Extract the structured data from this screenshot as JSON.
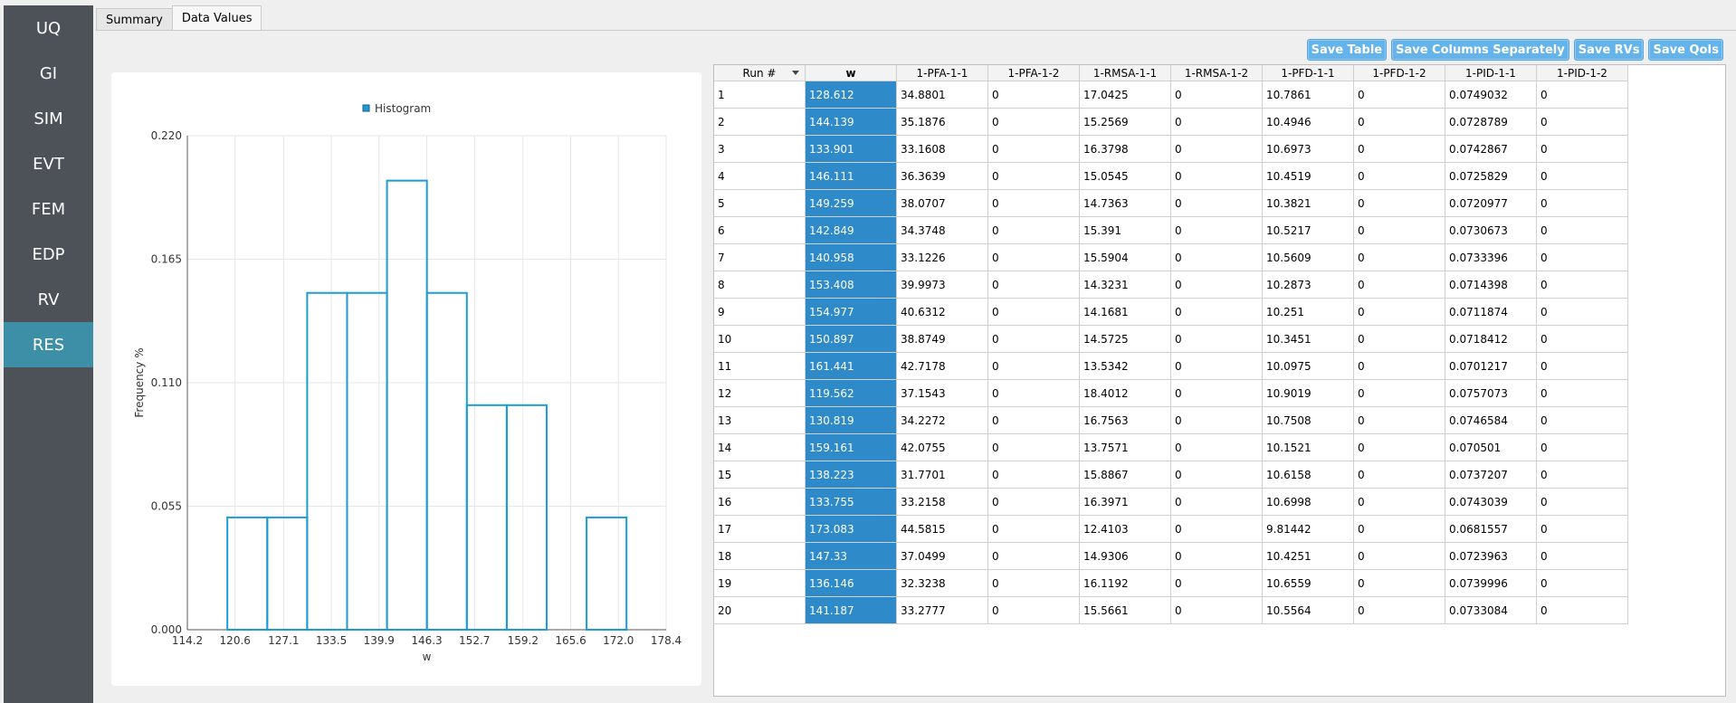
{
  "sidebar": {
    "items": [
      {
        "label": "UQ",
        "active": false
      },
      {
        "label": "GI",
        "active": false
      },
      {
        "label": "SIM",
        "active": false
      },
      {
        "label": "EVT",
        "active": false
      },
      {
        "label": "FEM",
        "active": false
      },
      {
        "label": "EDP",
        "active": false
      },
      {
        "label": "RV",
        "active": false
      },
      {
        "label": "RES",
        "active": true
      }
    ]
  },
  "tabs": [
    {
      "label": "Summary",
      "active": false
    },
    {
      "label": "Data Values",
      "active": true
    }
  ],
  "toolbar": {
    "buttons": [
      "Save Table",
      "Save Columns Separately",
      "Save RVs",
      "Save QoIs"
    ]
  },
  "chart_data": {
    "type": "histogram",
    "legend": "Histogram",
    "xlabel": "w",
    "ylabel": "Frequency %",
    "xlim": [
      114.2,
      178.4
    ],
    "ylim": [
      0,
      0.22
    ],
    "x_ticks": [
      "114.2",
      "120.6",
      "127.1",
      "133.5",
      "139.9",
      "146.3",
      "152.7",
      "159.2",
      "165.6",
      "172.0",
      "178.4"
    ],
    "y_ticks": [
      "0.000",
      "0.055",
      "0.110",
      "0.165",
      "0.220"
    ],
    "bin_edges": [
      119.562,
      124.914,
      130.266,
      135.618,
      140.97,
      146.322,
      151.674,
      157.026,
      162.378,
      167.73,
      173.083
    ],
    "values": [
      0.05,
      0.05,
      0.15,
      0.15,
      0.2,
      0.15,
      0.1,
      0.1,
      0.0,
      0.05
    ],
    "color": "#1e9bd7",
    "legend_position": "top"
  },
  "table": {
    "columns": [
      "Run #",
      "w",
      "1-PFA-1-1",
      "1-PFA-1-2",
      "1-RMSA-1-1",
      "1-RMSA-1-2",
      "1-PFD-1-1",
      "1-PFD-1-2",
      "1-PID-1-1",
      "1-PID-1-2"
    ],
    "rows": [
      [
        "1",
        "128.612",
        "34.8801",
        "0",
        "17.0425",
        "0",
        "10.7861",
        "0",
        "0.0749032",
        "0"
      ],
      [
        "2",
        "144.139",
        "35.1876",
        "0",
        "15.2569",
        "0",
        "10.4946",
        "0",
        "0.0728789",
        "0"
      ],
      [
        "3",
        "133.901",
        "33.1608",
        "0",
        "16.3798",
        "0",
        "10.6973",
        "0",
        "0.0742867",
        "0"
      ],
      [
        "4",
        "146.111",
        "36.3639",
        "0",
        "15.0545",
        "0",
        "10.4519",
        "0",
        "0.0725829",
        "0"
      ],
      [
        "5",
        "149.259",
        "38.0707",
        "0",
        "14.7363",
        "0",
        "10.3821",
        "0",
        "0.0720977",
        "0"
      ],
      [
        "6",
        "142.849",
        "34.3748",
        "0",
        "15.391",
        "0",
        "10.5217",
        "0",
        "0.0730673",
        "0"
      ],
      [
        "7",
        "140.958",
        "33.1226",
        "0",
        "15.5904",
        "0",
        "10.5609",
        "0",
        "0.0733396",
        "0"
      ],
      [
        "8",
        "153.408",
        "39.9973",
        "0",
        "14.3231",
        "0",
        "10.2873",
        "0",
        "0.0714398",
        "0"
      ],
      [
        "9",
        "154.977",
        "40.6312",
        "0",
        "14.1681",
        "0",
        "10.251",
        "0",
        "0.0711874",
        "0"
      ],
      [
        "10",
        "150.897",
        "38.8749",
        "0",
        "14.5725",
        "0",
        "10.3451",
        "0",
        "0.0718412",
        "0"
      ],
      [
        "11",
        "161.441",
        "42.7178",
        "0",
        "13.5342",
        "0",
        "10.0975",
        "0",
        "0.0701217",
        "0"
      ],
      [
        "12",
        "119.562",
        "37.1543",
        "0",
        "18.4012",
        "0",
        "10.9019",
        "0",
        "0.0757073",
        "0"
      ],
      [
        "13",
        "130.819",
        "34.2272",
        "0",
        "16.7563",
        "0",
        "10.7508",
        "0",
        "0.0746584",
        "0"
      ],
      [
        "14",
        "159.161",
        "42.0755",
        "0",
        "13.7571",
        "0",
        "10.1521",
        "0",
        "0.070501",
        "0"
      ],
      [
        "15",
        "138.223",
        "31.7701",
        "0",
        "15.8867",
        "0",
        "10.6158",
        "0",
        "0.0737207",
        "0"
      ],
      [
        "16",
        "133.755",
        "33.2158",
        "0",
        "16.3971",
        "0",
        "10.6998",
        "0",
        "0.0743039",
        "0"
      ],
      [
        "17",
        "173.083",
        "44.5815",
        "0",
        "12.4103",
        "0",
        "9.81442",
        "0",
        "0.0681557",
        "0"
      ],
      [
        "18",
        "147.33",
        "37.0499",
        "0",
        "14.9306",
        "0",
        "10.4251",
        "0",
        "0.0723963",
        "0"
      ],
      [
        "19",
        "136.146",
        "32.3238",
        "0",
        "16.1192",
        "0",
        "10.6559",
        "0",
        "0.0739996",
        "0"
      ],
      [
        "20",
        "141.187",
        "33.2777",
        "0",
        "15.5661",
        "0",
        "10.5564",
        "0",
        "0.0733084",
        "0"
      ]
    ]
  }
}
